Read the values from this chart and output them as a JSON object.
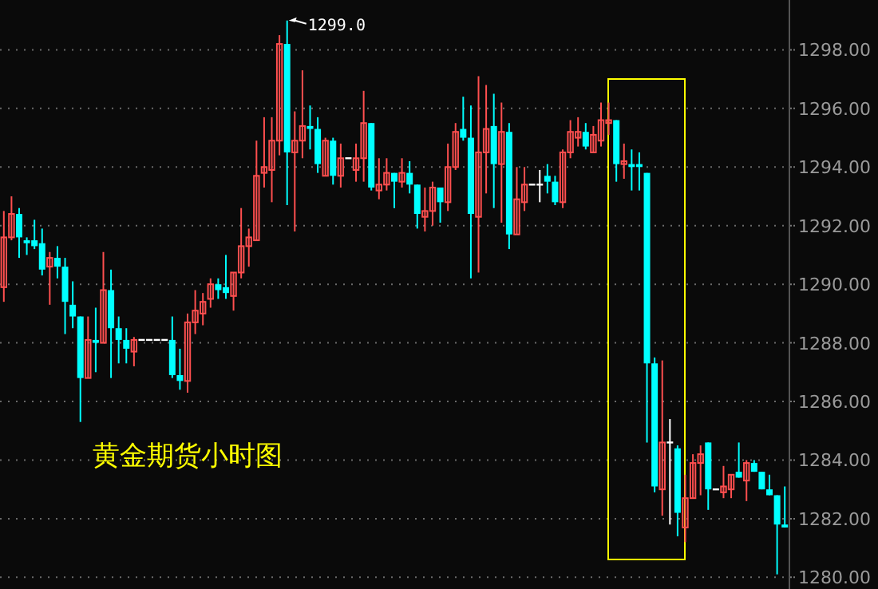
{
  "chart_data": {
    "type": "candlestick",
    "title": "黄金期货小时图",
    "categories": [
      null,
      null,
      null,
      null,
      null,
      null,
      null,
      null,
      null,
      null,
      null,
      null,
      null,
      null,
      null,
      null,
      null,
      null,
      null,
      null,
      null,
      null,
      null,
      null,
      null,
      null,
      null,
      null,
      null,
      null,
      null,
      null,
      null,
      null,
      null,
      null,
      null,
      null,
      null,
      null,
      null,
      null,
      null,
      null,
      null,
      null,
      null,
      null,
      null,
      null,
      null,
      null,
      null,
      null,
      null,
      null,
      null,
      null,
      null,
      null,
      null,
      null,
      null,
      null,
      null,
      null,
      null,
      null,
      null,
      null,
      null,
      null,
      null,
      null,
      null,
      null,
      null,
      null,
      null,
      null,
      null,
      null,
      null,
      null,
      null,
      null,
      null,
      null,
      null,
      null,
      null,
      null,
      null,
      null,
      null,
      null,
      null,
      null,
      null,
      null,
      null,
      null,
      null
    ],
    "ohlc": [
      [
        1289.9,
        1292.5,
        1289.4,
        1291.6
      ],
      [
        1291.6,
        1293.0,
        1291.5,
        1292.4
      ],
      [
        1292.4,
        1292.6,
        1290.9,
        1291.6
      ],
      [
        1291.5,
        1291.6,
        1291.0,
        1291.4
      ],
      [
        1291.5,
        1292.2,
        1291.2,
        1291.3
      ],
      [
        1291.4,
        1291.9,
        1290.3,
        1290.5
      ],
      [
        1290.6,
        1291.1,
        1289.3,
        1290.9
      ],
      [
        1290.9,
        1291.3,
        1290.2,
        1290.6
      ],
      [
        1290.6,
        1290.9,
        1288.3,
        1289.4
      ],
      [
        1289.3,
        1290.1,
        1288.5,
        1288.9
      ],
      [
        1288.9,
        1288.9,
        1285.3,
        1286.8
      ],
      [
        1286.8,
        1288.9,
        1286.8,
        1288.1
      ],
      [
        1288.1,
        1289.2,
        1287.0,
        1288.0
      ],
      [
        1288.0,
        1291.1,
        1288.0,
        1289.8
      ],
      [
        1289.8,
        1290.5,
        1286.8,
        1288.5
      ],
      [
        1288.5,
        1288.9,
        1287.3,
        1288.1
      ],
      [
        1288.1,
        1288.5,
        1287.3,
        1287.8
      ],
      [
        1287.7,
        1288.2,
        1287.2,
        1288.1
      ],
      [
        1288.1,
        1288.1,
        1288.1,
        1288.1
      ],
      [
        1288.1,
        1288.1,
        1288.1,
        1288.1
      ],
      [
        1288.1,
        1288.1,
        1288.1,
        1288.1
      ],
      [
        1288.1,
        1288.1,
        1288.1,
        1288.1
      ],
      [
        1288.1,
        1288.9,
        1286.8,
        1286.9
      ],
      [
        1286.9,
        1287.8,
        1286.4,
        1286.7
      ],
      [
        1286.7,
        1289.0,
        1286.3,
        1288.7
      ],
      [
        1288.7,
        1289.8,
        1288.3,
        1289.1
      ],
      [
        1289.0,
        1289.7,
        1288.6,
        1289.4
      ],
      [
        1289.5,
        1290.2,
        1289.2,
        1290.0
      ],
      [
        1290.0,
        1290.2,
        1289.5,
        1289.8
      ],
      [
        1289.9,
        1291.0,
        1289.5,
        1289.7
      ],
      [
        1289.6,
        1290.4,
        1289.1,
        1290.4
      ],
      [
        1290.4,
        1292.6,
        1290.2,
        1291.3
      ],
      [
        1291.3,
        1291.9,
        1290.6,
        1291.6
      ],
      [
        1291.5,
        1294.9,
        1291.5,
        1293.7
      ],
      [
        1293.8,
        1295.7,
        1293.3,
        1294.0
      ],
      [
        1293.9,
        1295.7,
        1292.8,
        1294.9
      ],
      [
        1294.9,
        1298.5,
        1294.4,
        1298.2
      ],
      [
        1298.2,
        1299.0,
        1292.7,
        1294.5
      ],
      [
        1294.5,
        1295.9,
        1291.8,
        1294.9
      ],
      [
        1294.9,
        1297.3,
        1294.3,
        1295.4
      ],
      [
        1295.4,
        1296.1,
        1294.6,
        1295.3
      ],
      [
        1295.3,
        1295.7,
        1293.8,
        1294.1
      ],
      [
        1293.7,
        1295.0,
        1293.7,
        1294.9
      ],
      [
        1294.9,
        1295.0,
        1293.4,
        1293.7
      ],
      [
        1293.7,
        1294.8,
        1293.3,
        1294.3
      ],
      [
        1294.3,
        1294.3,
        1294.3,
        1294.3
      ],
      [
        1293.9,
        1294.8,
        1293.5,
        1294.3
      ],
      [
        1294.3,
        1296.6,
        1293.5,
        1295.5
      ],
      [
        1295.5,
        1295.5,
        1293.2,
        1293.3
      ],
      [
        1293.2,
        1294.3,
        1292.9,
        1293.4
      ],
      [
        1293.4,
        1294.3,
        1293.2,
        1293.8
      ],
      [
        1293.8,
        1293.8,
        1292.6,
        1293.5
      ],
      [
        1293.5,
        1294.3,
        1293.3,
        1293.8
      ],
      [
        1293.8,
        1294.2,
        1293.1,
        1293.4
      ],
      [
        1293.4,
        1293.4,
        1291.9,
        1292.4
      ],
      [
        1292.3,
        1293.3,
        1291.8,
        1292.5
      ],
      [
        1292.5,
        1293.5,
        1292.0,
        1293.3
      ],
      [
        1293.3,
        1293.3,
        1292.1,
        1292.8
      ],
      [
        1292.8,
        1294.8,
        1292.5,
        1294.0
      ],
      [
        1294.0,
        1295.5,
        1293.9,
        1295.2
      ],
      [
        1295.3,
        1296.4,
        1294.9,
        1295.0
      ],
      [
        1295.0,
        1296.1,
        1290.2,
        1292.4
      ],
      [
        1292.3,
        1297.1,
        1290.4,
        1294.5
      ],
      [
        1294.5,
        1296.8,
        1293.1,
        1295.3
      ],
      [
        1295.4,
        1296.5,
        1292.6,
        1294.1
      ],
      [
        1294.1,
        1296.2,
        1292.1,
        1295.2
      ],
      [
        1295.2,
        1295.5,
        1291.2,
        1291.7
      ],
      [
        1291.7,
        1294.0,
        1291.7,
        1292.9
      ],
      [
        1292.8,
        1294.0,
        1292.5,
        1293.4
      ],
      [
        1293.4,
        1293.4,
        1293.4,
        1293.4
      ],
      [
        1293.4,
        1293.9,
        1292.8,
        1293.4
      ],
      [
        1293.7,
        1294.1,
        1293.1,
        1293.5
      ],
      [
        1293.5,
        1293.7,
        1292.7,
        1292.8
      ],
      [
        1292.8,
        1294.6,
        1292.6,
        1294.5
      ],
      [
        1294.5,
        1295.6,
        1294.3,
        1295.2
      ],
      [
        1295.0,
        1295.7,
        1294.7,
        1295.2
      ],
      [
        1295.2,
        1295.5,
        1294.6,
        1294.7
      ],
      [
        1294.5,
        1295.4,
        1294.5,
        1295.1
      ],
      [
        1294.9,
        1296.2,
        1294.7,
        1295.6
      ],
      [
        1295.5,
        1296.2,
        1295.1,
        1295.6
      ],
      [
        1295.6,
        1295.6,
        1293.5,
        1294.1
      ],
      [
        1294.1,
        1294.8,
        1293.6,
        1294.2
      ],
      [
        1294.1,
        1294.6,
        1293.2,
        1294.0
      ],
      [
        1294.1,
        1294.5,
        1293.2,
        1294.0
      ],
      [
        1293.8,
        1293.8,
        1284.6,
        1287.3
      ],
      [
        1287.3,
        1287.5,
        1282.9,
        1283.1
      ],
      [
        1283.0,
        1287.4,
        1282.1,
        1284.6
      ],
      [
        1284.6,
        1285.4,
        1281.8,
        1284.6
      ],
      [
        1284.4,
        1284.5,
        1281.4,
        1282.2
      ],
      [
        1281.7,
        1283.5,
        1281.2,
        1282.7
      ],
      [
        1282.7,
        1284.2,
        1282.7,
        1283.9
      ],
      [
        1283.9,
        1284.5,
        1282.8,
        1284.2
      ],
      [
        1284.6,
        1284.6,
        1282.3,
        1283.0
      ],
      [
        1283.0,
        1283.0,
        1283.0,
        1283.0
      ],
      [
        1282.9,
        1283.8,
        1282.7,
        1283.1
      ],
      [
        1283.0,
        1283.5,
        1282.7,
        1283.5
      ],
      [
        1283.6,
        1284.6,
        1283.4,
        1283.4
      ],
      [
        1283.3,
        1284.0,
        1282.6,
        1283.9
      ],
      [
        1283.9,
        1284.0,
        1283.6,
        1283.6
      ],
      [
        1283.6,
        1283.6,
        1283.0,
        1283.0
      ],
      [
        1283.0,
        1283.5,
        1282.8,
        1282.8
      ],
      [
        1282.8,
        1282.8,
        1280.1,
        1281.8
      ],
      [
        1281.8,
        1283.1,
        1281.7,
        1281.7
      ]
    ],
    "colors": [
      "#ff4f4f",
      "#ff4f4f",
      "#00ffff",
      "#00ffff",
      "#00ffff",
      "#00ffff",
      "#ff4f4f",
      "#00ffff",
      "#00ffff",
      "#00ffff",
      "#00ffff",
      "#ff4f4f",
      "#00ffff",
      "#ff4f4f",
      "#00ffff",
      "#00ffff",
      "#00ffff",
      "#ff4f4f",
      "#ffffff",
      "#ffffff",
      "#ffffff",
      "#ffffff",
      "#00ffff",
      "#00ffff",
      "#ff4f4f",
      "#ff4f4f",
      "#ff4f4f",
      "#ff4f4f",
      "#00ffff",
      "#00ffff",
      "#ff4f4f",
      "#ff4f4f",
      "#ff4f4f",
      "#ff4f4f",
      "#ff4f4f",
      "#ff4f4f",
      "#ff4f4f",
      "#00ffff",
      "#ff4f4f",
      "#ff4f4f",
      "#00ffff",
      "#00ffff",
      "#ff4f4f",
      "#00ffff",
      "#ff4f4f",
      "#ffffff",
      "#ff4f4f",
      "#ff4f4f",
      "#00ffff",
      "#ff4f4f",
      "#ff4f4f",
      "#00ffff",
      "#ff4f4f",
      "#00ffff",
      "#00ffff",
      "#ff4f4f",
      "#ff4f4f",
      "#00ffff",
      "#ff4f4f",
      "#ff4f4f",
      "#00ffff",
      "#00ffff",
      "#ff4f4f",
      "#ff4f4f",
      "#00ffff",
      "#ff4f4f",
      "#00ffff",
      "#ff4f4f",
      "#ff4f4f",
      "#ffffff",
      "#ffffff",
      "#00ffff",
      "#00ffff",
      "#ff4f4f",
      "#ff4f4f",
      "#ff4f4f",
      "#00ffff",
      "#ff4f4f",
      "#ff4f4f",
      "#ff4f4f",
      "#00ffff",
      "#ff4f4f",
      "#00ffff",
      "#00ffff",
      "#00ffff",
      "#00ffff",
      "#ff4f4f",
      "#ffffff",
      "#00ffff",
      "#ff4f4f",
      "#ff4f4f",
      "#ff4f4f",
      "#00ffff",
      "#ffffff",
      "#ff4f4f",
      "#ff4f4f",
      "#00ffff",
      "#ff4f4f",
      "#00ffff",
      "#00ffff",
      "#00ffff",
      "#00ffff",
      "#00ffff"
    ],
    "ylim": [
      1279.6,
      1299.7
    ],
    "yticks": [
      {
        "value": 1280,
        "label": "1280.00"
      },
      {
        "value": 1282,
        "label": "1282.00"
      },
      {
        "value": 1284,
        "label": "1284.00"
      },
      {
        "value": 1286,
        "label": "1286.00"
      },
      {
        "value": 1288,
        "label": "1288.00"
      },
      {
        "value": 1290,
        "label": "1290.00"
      },
      {
        "value": 1292,
        "label": "1292.00"
      },
      {
        "value": 1294,
        "label": "1294.00"
      },
      {
        "value": 1296,
        "label": "1296.00"
      },
      {
        "value": 1298,
        "label": "1298.00"
      }
    ],
    "grid": "y",
    "tick_labels": "y",
    "annotations": [
      "1299.0"
    ]
  }
}
